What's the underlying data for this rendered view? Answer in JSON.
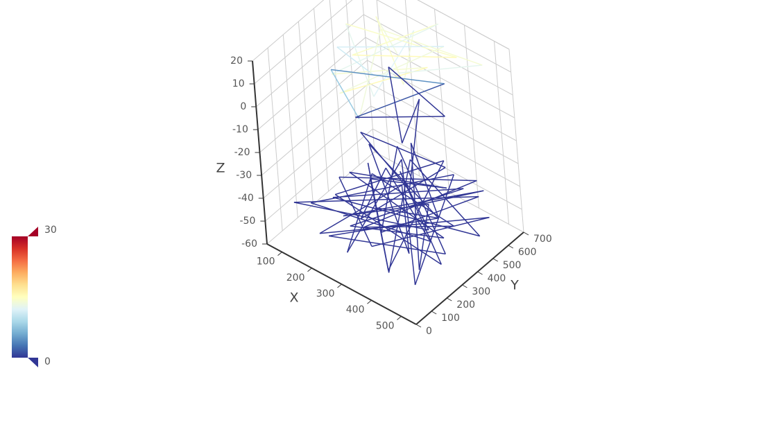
{
  "chart_data": {
    "type": "line3d",
    "x_label": "X",
    "y_label": "Y",
    "z_label": "Z",
    "xlim": [
      50,
      550
    ],
    "xticks": [
      100,
      200,
      300,
      400,
      500
    ],
    "ylim": [
      0,
      700
    ],
    "yticks": [
      0,
      100,
      200,
      300,
      400,
      500,
      600,
      700
    ],
    "zlim": [
      -60,
      20
    ],
    "zticks": [
      -60,
      -50,
      -40,
      -30,
      -20,
      -10,
      0,
      10,
      20
    ],
    "grid": true,
    "visual_map": {
      "min": 0,
      "max": 30,
      "colors": [
        "#313695",
        "#4575b4",
        "#74add1",
        "#abd9e9",
        "#e0f3f8",
        "#ffffbf",
        "#fee090",
        "#fdae61",
        "#f46d43",
        "#d73027",
        "#a50026"
      ]
    },
    "x": [
      300,
      150,
      400,
      250,
      350,
      100,
      450,
      200,
      320,
      180,
      420,
      260,
      380,
      120,
      300,
      480,
      220,
      350,
      150,
      400,
      280,
      450,
      180,
      350,
      250,
      420,
      150,
      380,
      300,
      200,
      450,
      100,
      350,
      500,
      200,
      300,
      150,
      480,
      250,
      400,
      120,
      330,
      520,
      180,
      280,
      430,
      90,
      370,
      240,
      500,
      160,
      310,
      460,
      70,
      390,
      220,
      540,
      130,
      290,
      410,
      200,
      350,
      100,
      470,
      260,
      380,
      150,
      510,
      230,
      320,
      440,
      110,
      270,
      400,
      180,
      490,
      340,
      210,
      450,
      300
    ],
    "y": [
      450,
      600,
      300,
      650,
      200,
      500,
      550,
      350,
      680,
      250,
      420,
      150,
      600,
      400,
      300,
      650,
      500,
      100,
      300,
      550,
      200,
      450,
      600,
      350,
      650,
      250,
      450,
      550,
      150,
      500,
      300,
      200,
      650,
      100,
      600,
      50,
      500,
      400,
      250,
      700,
      350,
      150,
      550,
      100,
      450,
      200,
      600,
      500,
      50,
      300,
      650,
      250,
      600,
      150,
      400,
      550,
      200,
      300,
      700,
      100,
      400,
      600,
      450,
      350,
      150,
      650,
      250,
      500,
      600,
      350,
      50,
      550,
      300,
      450,
      700,
      150,
      500,
      200,
      650,
      400
    ],
    "z": [
      15,
      12,
      17,
      10,
      14,
      11,
      18,
      13,
      16,
      9,
      19,
      12,
      15,
      8,
      14,
      11,
      17,
      10,
      6,
      3,
      0,
      -2,
      -8,
      -15,
      -20,
      -25,
      -30,
      -35,
      -40,
      -45,
      -48,
      -50,
      -46,
      -52,
      -47,
      -49,
      -51,
      -45,
      -53,
      -48,
      -46,
      -50,
      -47,
      -52,
      -44,
      -49,
      -48,
      -55,
      -46,
      -50,
      -47,
      -51,
      -45,
      -49,
      -53,
      -48,
      -46,
      -50,
      -47,
      -52,
      -44,
      -49,
      -51,
      -48,
      -46,
      -50,
      -47,
      -53,
      -45,
      -49,
      -48,
      -52,
      -46,
      -50,
      -47,
      -49,
      -51,
      -48,
      -46,
      -50
    ]
  }
}
